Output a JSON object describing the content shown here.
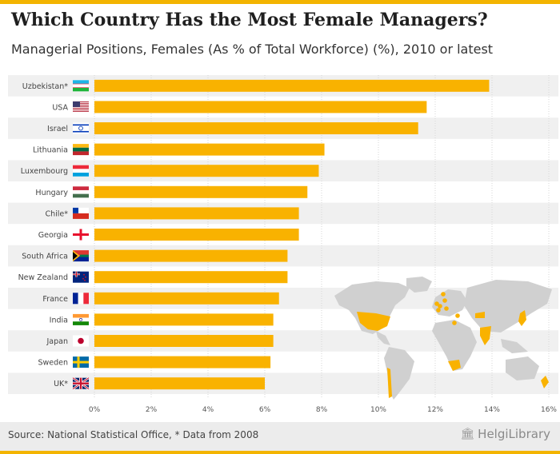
{
  "header": {
    "title": "Which Country Has the Most Female Managers?",
    "subtitle": "Managerial Positions, Females (As % of Total Workforce) (%), 2010 or latest"
  },
  "footer": {
    "source": "Source: National Statistical Office, * Data from 2008",
    "logo_icon": "building-icon",
    "logo_text": "HelgiLibrary"
  },
  "colors": {
    "bar": "#f9b200",
    "stripe": "#f0f0f0",
    "map_land": "#d0d0d0",
    "map_highlight": "#f9b200"
  },
  "chart_data": {
    "type": "bar",
    "orientation": "horizontal",
    "title": "Which Country Has the Most Female Managers?",
    "subtitle": "Managerial Positions, Females (As % of Total Workforce) (%), 2010 or latest",
    "categories": [
      "Uzbekistan*",
      "USA",
      "Israel",
      "Lithuania",
      "Luxembourg",
      "Hungary",
      "Chile*",
      "Georgia",
      "South Africa",
      "New Zealand",
      "France",
      "India",
      "Japan",
      "Sweden",
      "UK*"
    ],
    "flags": [
      "uzbekistan-flag-icon",
      "usa-flag-icon",
      "israel-flag-icon",
      "lithuania-flag-icon",
      "luxembourg-flag-icon",
      "hungary-flag-icon",
      "chile-flag-icon",
      "georgia-flag-icon",
      "south-africa-flag-icon",
      "new-zealand-flag-icon",
      "france-flag-icon",
      "india-flag-icon",
      "japan-flag-icon",
      "sweden-flag-icon",
      "uk-flag-icon"
    ],
    "values": [
      13.9,
      11.7,
      11.4,
      8.1,
      7.9,
      7.5,
      7.2,
      7.2,
      6.8,
      6.8,
      6.5,
      6.3,
      6.3,
      6.2,
      6.0
    ],
    "xlim": [
      0,
      16
    ],
    "xticks": [
      0,
      2,
      4,
      6,
      8,
      10,
      12,
      14,
      16
    ],
    "xtick_labels": [
      "0%",
      "2%",
      "4%",
      "6%",
      "8%",
      "10%",
      "12%",
      "14%",
      "16%"
    ],
    "xlabel": "",
    "ylabel": "",
    "grid": true
  }
}
